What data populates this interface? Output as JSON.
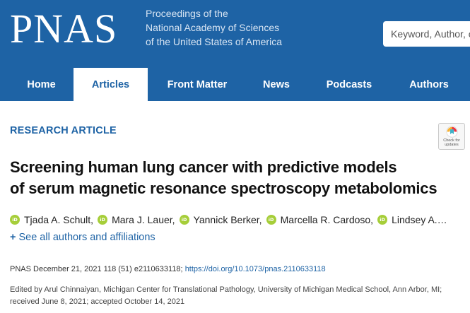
{
  "header": {
    "logo": "PNAS",
    "tagline": [
      "Proceedings of the",
      "National Academy of Sciences",
      "of the United States of America"
    ],
    "search_placeholder": "Keyword, Author, or DOI",
    "colors": {
      "brand": "#1e63a5",
      "white": "#ffffff"
    }
  },
  "nav": {
    "items": [
      {
        "label": "Home",
        "active": false
      },
      {
        "label": "Articles",
        "active": true
      },
      {
        "label": "Front Matter",
        "active": false
      },
      {
        "label": "News",
        "active": false
      },
      {
        "label": "Podcasts",
        "active": false
      },
      {
        "label": "Authors",
        "active": false
      }
    ]
  },
  "article": {
    "type": "RESEARCH ARTICLE",
    "crossmark": {
      "icon": "crossmark-icon",
      "line1": "Check for",
      "line2": "updates"
    },
    "title_lines": [
      "Screening human lung cancer with predictive models",
      "of serum magnetic resonance spectroscopy metabolomics"
    ],
    "authors": [
      {
        "name": "Tjada A. Schult,"
      },
      {
        "name": "Mara J. Lauer,"
      },
      {
        "name": "Yannick Berker,"
      },
      {
        "name": "Marcella R. Cardoso,"
      },
      {
        "name": "Lindsey A.…"
      }
    ],
    "orcid_icon": "orcid-icon",
    "orcid_label": "iD",
    "see_all": {
      "plus": "+",
      "label": "See all authors and affiliations"
    },
    "citation": {
      "text": "PNAS December 21, 2021 118 (51) e2110633118;",
      "doi": "https://doi.org/10.1073/pnas.2110633118"
    },
    "edited_by": "Edited by Arul Chinnaiyan, Michigan Center for Translational Pathology, University of Michigan Medical School, Ann Arbor, MI; received June 8, 2021; accepted October 14, 2021"
  }
}
